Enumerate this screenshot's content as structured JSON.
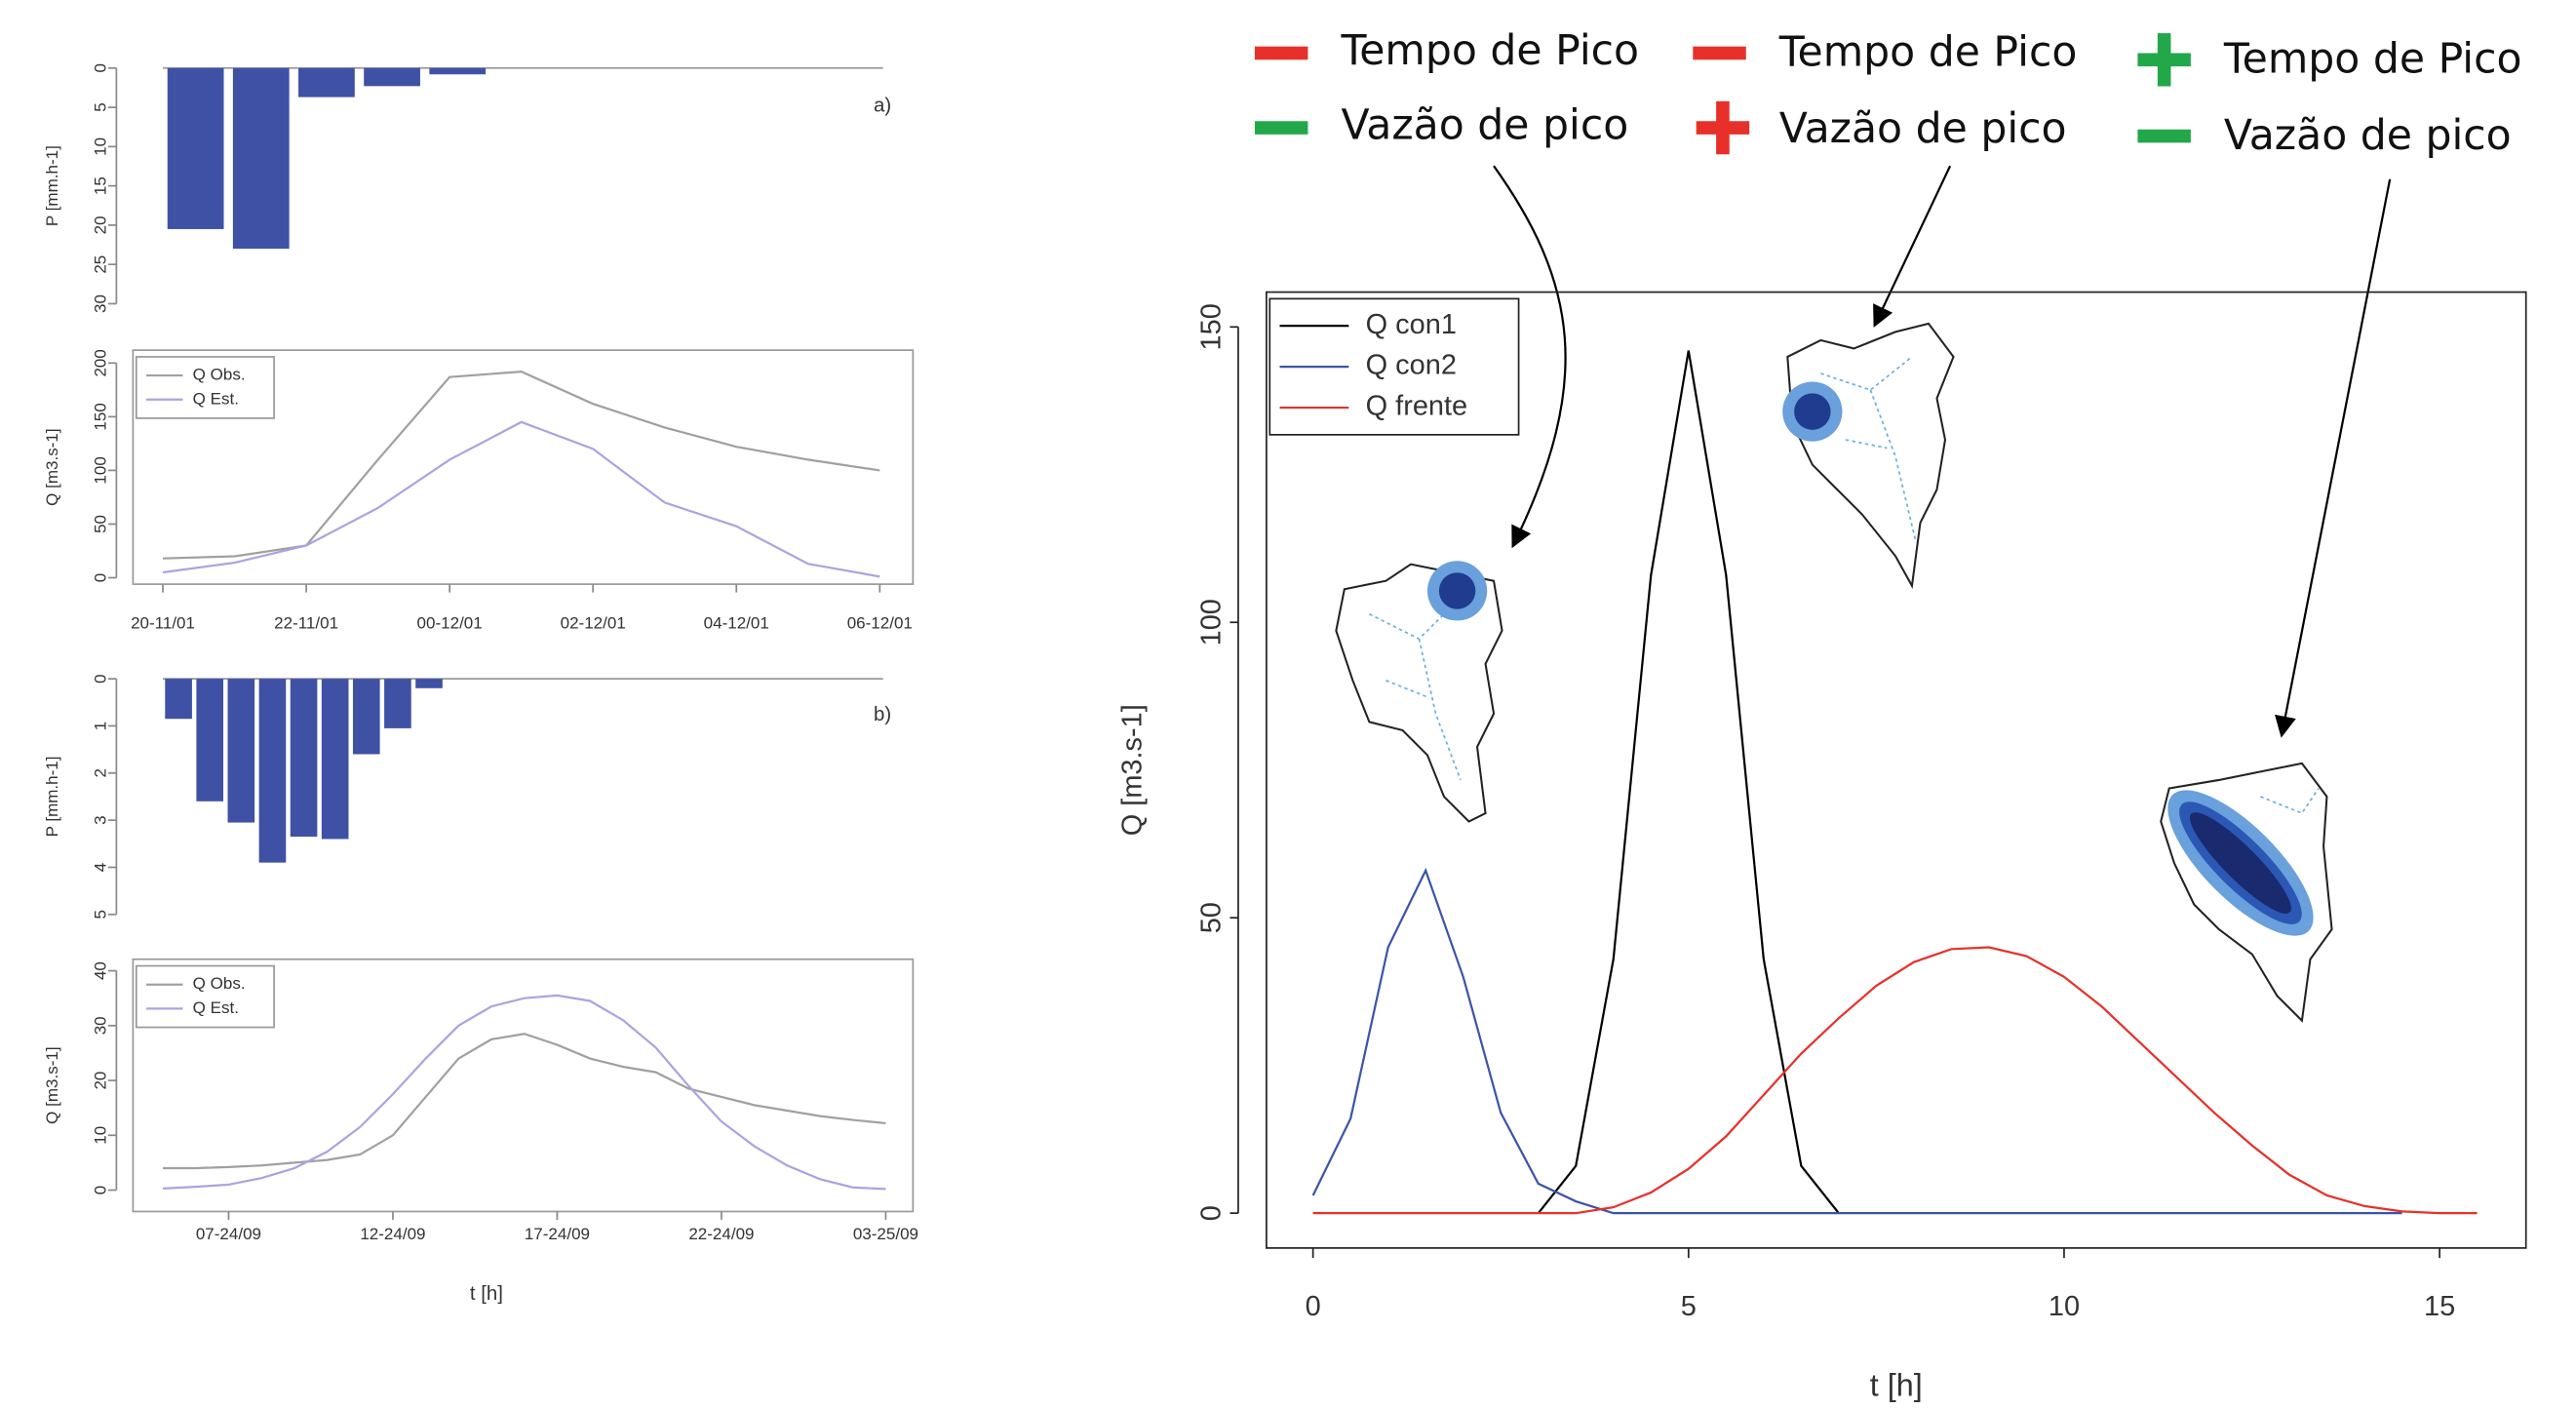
{
  "chart_data": [
    {
      "type": "bar",
      "ylabel": "P [mm.h-1]",
      "annotation": "a)",
      "color": "#3f51a5",
      "y_inverted": true,
      "categories": [
        null,
        null,
        null,
        null,
        null,
        null,
        null,
        null,
        null,
        null,
        null
      ],
      "values": [
        20.5,
        23,
        3.7,
        2.3,
        0.8,
        0,
        0,
        0,
        0,
        0,
        0
      ],
      "ylim": [
        0,
        30
      ],
      "yticks": [
        0,
        5,
        10,
        15,
        20,
        25,
        30
      ]
    },
    {
      "type": "line",
      "ylabel": "Q [m3.s-1]",
      "legend": "top-left",
      "categories": [
        "20-11/01",
        null,
        "22-11/01",
        null,
        "00-12/01",
        null,
        "02-12/01",
        null,
        "04-12/01",
        null,
        "06-12/01"
      ],
      "series": [
        {
          "name": "Q Obs.",
          "color": "#a0a0a0",
          "values": [
            18,
            20,
            30,
            110,
            187,
            192,
            162,
            140,
            122,
            110,
            100
          ]
        },
        {
          "name": "Q Est.",
          "color": "#a9a4e0",
          "values": [
            5,
            14,
            30,
            65,
            110,
            145,
            120,
            70,
            48,
            13,
            1
          ]
        }
      ],
      "ylim": [
        -6,
        212
      ],
      "yticks": [
        0,
        50,
        100,
        150,
        200
      ]
    },
    {
      "type": "bar",
      "ylabel": "P [mm.h-1]",
      "annotation": "b)",
      "color": "#3f51a5",
      "y_inverted": true,
      "categories": [
        null,
        null,
        null,
        null,
        null,
        null,
        null,
        null,
        null,
        null,
        null,
        null,
        null,
        null,
        null,
        null,
        null,
        null,
        null,
        null,
        null,
        null,
        null
      ],
      "values": [
        0.85,
        2.6,
        3.05,
        3.9,
        3.35,
        3.4,
        1.6,
        1.05,
        0.2,
        0,
        0,
        0,
        0,
        0,
        0,
        0,
        0,
        0,
        0,
        0,
        0,
        0,
        0
      ],
      "ylim": [
        0,
        5
      ],
      "yticks": [
        0,
        1,
        2,
        3,
        4,
        5
      ]
    },
    {
      "type": "line",
      "ylabel": "Q [m3.s-1]",
      "xlabel": "t [h]",
      "legend": "top-left",
      "categories": [
        null,
        null,
        "07-24/09",
        null,
        null,
        null,
        null,
        "12-24/09",
        null,
        null,
        null,
        null,
        "17-24/09",
        null,
        null,
        null,
        null,
        "22-24/09",
        null,
        null,
        null,
        null,
        "03-25/09"
      ],
      "series": [
        {
          "name": "Q Obs.",
          "color": "#a0a0a0",
          "values": [
            4,
            4,
            4.2,
            4.5,
            5,
            5.5,
            6.5,
            10,
            17,
            24,
            27.5,
            28.5,
            26.5,
            24,
            22.5,
            21.5,
            18.5,
            17,
            15.5,
            14.5,
            13.5,
            12.8,
            12.2
          ]
        },
        {
          "name": "Q Est.",
          "color": "#a9a4e0",
          "values": [
            0.3,
            0.6,
            1,
            2.2,
            4,
            7,
            11.5,
            17.5,
            24,
            30,
            33.5,
            35,
            35.5,
            34.5,
            31,
            26,
            19,
            12.5,
            8,
            4.5,
            2,
            0.5,
            0.2
          ]
        }
      ],
      "ylim": [
        -3.9,
        42.1
      ],
      "yticks": [
        0,
        10,
        20,
        30,
        40
      ]
    },
    {
      "type": "xyline",
      "xlabel": "t [h]",
      "ylabel": "Q [m3.s-1]",
      "legend": "top-left",
      "annotations": [
        "Tempo de Pico",
        "Vazão de pico",
        "Tempo de Pico",
        "Vazão de pico",
        "Tempo de Pico",
        "Vazão de pico"
      ],
      "x": [
        0,
        0.5,
        1,
        1.5,
        2,
        2.5,
        3,
        3.5,
        4,
        4.5,
        5,
        5.5,
        6,
        6.5,
        7,
        7.5,
        8,
        8.5,
        9,
        9.5,
        10,
        10.5,
        11,
        11.5,
        12,
        12.5,
        13,
        13.5,
        14,
        14.5,
        15,
        15.5
      ],
      "series": [
        {
          "name": "Q con1",
          "color": "#000000",
          "values": [
            null,
            null,
            null,
            null,
            null,
            null,
            0,
            8,
            43,
            108,
            146,
            108,
            43,
            8,
            0,
            null,
            null,
            null,
            null,
            null,
            null,
            null,
            null,
            null,
            null,
            null,
            null,
            null,
            null,
            null,
            null,
            null
          ]
        },
        {
          "name": "Q con2",
          "color": "#3a55a8",
          "values": [
            3,
            16,
            45,
            58,
            40,
            17,
            5,
            2,
            0,
            0,
            0,
            0,
            0,
            0,
            0,
            0,
            0,
            0,
            0,
            0,
            0,
            0,
            0,
            0,
            0,
            0,
            0,
            0,
            0,
            0,
            null,
            null
          ]
        },
        {
          "name": "Q frente",
          "color": "#e8302a",
          "values": [
            0,
            0,
            0,
            0,
            0,
            0,
            0,
            0,
            1,
            3.5,
            7.5,
            13,
            20,
            27,
            33,
            38.5,
            42.5,
            44.7,
            45,
            43.5,
            40,
            35,
            29,
            23,
            17,
            11.5,
            6.5,
            3,
            1.2,
            0.3,
            0,
            0
          ]
        }
      ],
      "xlim": [
        -0.62,
        16.15
      ],
      "xticks": [
        0,
        5,
        10,
        15
      ],
      "ylim": [
        -5.9,
        155.9
      ],
      "yticks": [
        0,
        50,
        100,
        150
      ]
    }
  ]
}
